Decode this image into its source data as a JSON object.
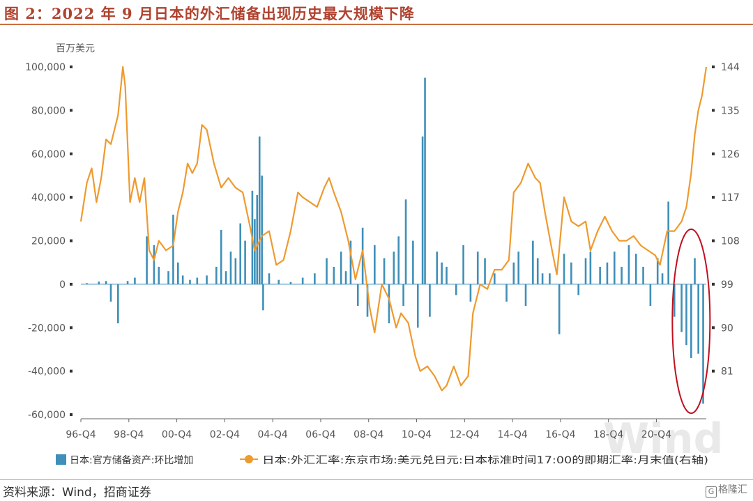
{
  "figure": {
    "title": "图 2：2022 年 9 月日本的外汇储备出现历史最大规模下降",
    "source": "资料来源：Wind，招商证券",
    "logo_text": "格隆汇",
    "watermark": "Wind"
  },
  "colors": {
    "title": "#b0422e",
    "bar": "#3f8fb8",
    "line": "#ef9a2e",
    "circle": "#c0101e",
    "axis": "#666666"
  },
  "chart_data": {
    "type": "bar+line",
    "unit_left": "百万美元",
    "left_axis": {
      "min": -60000,
      "max": 100000,
      "ticks": [
        100000,
        80000,
        60000,
        40000,
        20000,
        0,
        -20000,
        -40000,
        -60000
      ],
      "labels": [
        "100,000",
        "80,000",
        "60,000",
        "40,000",
        "20,000",
        "0",
        "-20,000",
        "-40,000",
        "-60,000"
      ]
    },
    "right_axis": {
      "min": 72,
      "max": 144,
      "ticks": [
        144,
        135,
        126,
        117,
        108,
        99,
        90,
        81
      ],
      "labels": [
        "144",
        "135",
        "126",
        "117",
        "108",
        "99",
        "90",
        "81"
      ]
    },
    "x_ticks": [
      "96-Q4",
      "98-Q4",
      "00-Q4",
      "02-Q4",
      "04-Q4",
      "06-Q4",
      "08-Q4",
      "10-Q4",
      "12-Q4",
      "14-Q4",
      "16-Q4",
      "18-Q4",
      "20-Q4"
    ],
    "x_range": [
      1996.75,
      2022.83
    ],
    "series": [
      {
        "name": "日本:官方储备资产:环比增加",
        "kind": "bar",
        "points": [
          [
            1997.0,
            500
          ],
          [
            1997.5,
            1200
          ],
          [
            1997.8,
            1500
          ],
          [
            1998.0,
            -8000
          ],
          [
            1998.3,
            -18000
          ],
          [
            1998.7,
            1500
          ],
          [
            1999.0,
            3000
          ],
          [
            1999.5,
            22000
          ],
          [
            1999.8,
            18000
          ],
          [
            2000.0,
            8000
          ],
          [
            2000.4,
            6000
          ],
          [
            2000.6,
            32000
          ],
          [
            2000.8,
            10000
          ],
          [
            2001.0,
            4000
          ],
          [
            2001.3,
            2000
          ],
          [
            2001.6,
            3000
          ],
          [
            2002.0,
            4000
          ],
          [
            2002.4,
            8000
          ],
          [
            2002.6,
            25000
          ],
          [
            2002.8,
            6000
          ],
          [
            2003.0,
            15000
          ],
          [
            2003.2,
            12000
          ],
          [
            2003.4,
            28000
          ],
          [
            2003.6,
            20000
          ],
          [
            2003.9,
            43000
          ],
          [
            2004.0,
            30000
          ],
          [
            2004.1,
            41000
          ],
          [
            2004.2,
            68000
          ],
          [
            2004.3,
            50000
          ],
          [
            2004.35,
            -12000
          ],
          [
            2004.6,
            5000
          ],
          [
            2005.0,
            2000
          ],
          [
            2005.5,
            1000
          ],
          [
            2006.0,
            3000
          ],
          [
            2006.5,
            5000
          ],
          [
            2007.0,
            12000
          ],
          [
            2007.3,
            8000
          ],
          [
            2007.6,
            15000
          ],
          [
            2007.8,
            6000
          ],
          [
            2008.0,
            20000
          ],
          [
            2008.3,
            -10000
          ],
          [
            2008.5,
            26000
          ],
          [
            2008.7,
            -15000
          ],
          [
            2009.0,
            18000
          ],
          [
            2009.4,
            12000
          ],
          [
            2009.6,
            -18000
          ],
          [
            2009.8,
            15000
          ],
          [
            2010.0,
            22000
          ],
          [
            2010.2,
            -10000
          ],
          [
            2010.3,
            39000
          ],
          [
            2010.6,
            20000
          ],
          [
            2010.8,
            -20000
          ],
          [
            2011.0,
            68000
          ],
          [
            2011.1,
            95000
          ],
          [
            2011.3,
            -15000
          ],
          [
            2011.6,
            15000
          ],
          [
            2011.8,
            10000
          ],
          [
            2012.0,
            8000
          ],
          [
            2012.4,
            -5000
          ],
          [
            2012.7,
            18000
          ],
          [
            2013.0,
            -8000
          ],
          [
            2013.3,
            15000
          ],
          [
            2013.6,
            12000
          ],
          [
            2014.0,
            5000
          ],
          [
            2014.5,
            -8000
          ],
          [
            2014.8,
            10000
          ],
          [
            2015.0,
            15000
          ],
          [
            2015.3,
            -10000
          ],
          [
            2015.6,
            20000
          ],
          [
            2015.8,
            12000
          ],
          [
            2016.0,
            5000
          ],
          [
            2016.3,
            5000
          ],
          [
            2016.7,
            -23000
          ],
          [
            2016.9,
            14000
          ],
          [
            2017.2,
            10000
          ],
          [
            2017.5,
            -5000
          ],
          [
            2017.8,
            12000
          ],
          [
            2018.0,
            15000
          ],
          [
            2018.4,
            8000
          ],
          [
            2018.7,
            10000
          ],
          [
            2019.0,
            15000
          ],
          [
            2019.3,
            8000
          ],
          [
            2019.6,
            18000
          ],
          [
            2019.9,
            14000
          ],
          [
            2020.2,
            8000
          ],
          [
            2020.5,
            -10000
          ],
          [
            2020.8,
            12000
          ],
          [
            2021.0,
            5000
          ],
          [
            2021.25,
            38000
          ],
          [
            2021.5,
            -15000
          ],
          [
            2021.8,
            -22000
          ],
          [
            2022.0,
            -28000
          ],
          [
            2022.2,
            -34000
          ],
          [
            2022.35,
            12000
          ],
          [
            2022.5,
            -32000
          ],
          [
            2022.7,
            -55000
          ]
        ]
      },
      {
        "name": "日本:外汇汇率:东京市场:美元兑日元:日本标准时间17:00的即期汇率:月末值(右轴)",
        "kind": "line",
        "points": [
          [
            1996.75,
            112
          ],
          [
            1997.0,
            120
          ],
          [
            1997.2,
            123
          ],
          [
            1997.4,
            116
          ],
          [
            1997.6,
            121
          ],
          [
            1997.8,
            129
          ],
          [
            1998.0,
            128
          ],
          [
            1998.2,
            132
          ],
          [
            1998.3,
            134
          ],
          [
            1998.5,
            144
          ],
          [
            1998.6,
            140
          ],
          [
            1998.8,
            116
          ],
          [
            1999.0,
            121
          ],
          [
            1999.2,
            116
          ],
          [
            1999.4,
            121
          ],
          [
            1999.6,
            106
          ],
          [
            1999.8,
            104
          ],
          [
            2000.0,
            108
          ],
          [
            2000.3,
            106
          ],
          [
            2000.6,
            107
          ],
          [
            2000.8,
            114
          ],
          [
            2001.0,
            118
          ],
          [
            2001.2,
            124
          ],
          [
            2001.4,
            122
          ],
          [
            2001.6,
            124
          ],
          [
            2001.8,
            132
          ],
          [
            2002.0,
            131
          ],
          [
            2002.3,
            124
          ],
          [
            2002.6,
            119
          ],
          [
            2002.9,
            121
          ],
          [
            2003.2,
            119
          ],
          [
            2003.5,
            118
          ],
          [
            2003.8,
            111
          ],
          [
            2004.0,
            106
          ],
          [
            2004.3,
            109
          ],
          [
            2004.6,
            110
          ],
          [
            2004.9,
            103
          ],
          [
            2005.2,
            104
          ],
          [
            2005.5,
            110
          ],
          [
            2005.8,
            118
          ],
          [
            2006.0,
            117
          ],
          [
            2006.3,
            116
          ],
          [
            2006.6,
            115
          ],
          [
            2006.9,
            119
          ],
          [
            2007.1,
            121
          ],
          [
            2007.3,
            118
          ],
          [
            2007.6,
            114
          ],
          [
            2007.9,
            108
          ],
          [
            2008.2,
            100
          ],
          [
            2008.5,
            106
          ],
          [
            2008.8,
            94
          ],
          [
            2009.0,
            89
          ],
          [
            2009.3,
            99
          ],
          [
            2009.6,
            96
          ],
          [
            2009.9,
            90
          ],
          [
            2010.1,
            93
          ],
          [
            2010.4,
            91
          ],
          [
            2010.7,
            84
          ],
          [
            2010.9,
            81
          ],
          [
            2011.2,
            82
          ],
          [
            2011.5,
            80
          ],
          [
            2011.8,
            77
          ],
          [
            2012.0,
            78
          ],
          [
            2012.3,
            82
          ],
          [
            2012.6,
            78
          ],
          [
            2012.9,
            80
          ],
          [
            2013.1,
            93
          ],
          [
            2013.4,
            99
          ],
          [
            2013.7,
            98
          ],
          [
            2014.0,
            102
          ],
          [
            2014.3,
            102
          ],
          [
            2014.6,
            104
          ],
          [
            2014.8,
            118
          ],
          [
            2015.1,
            120
          ],
          [
            2015.4,
            124
          ],
          [
            2015.7,
            121
          ],
          [
            2015.9,
            120
          ],
          [
            2016.1,
            114
          ],
          [
            2016.4,
            106
          ],
          [
            2016.6,
            101
          ],
          [
            2016.9,
            117
          ],
          [
            2017.2,
            112
          ],
          [
            2017.5,
            111
          ],
          [
            2017.8,
            112
          ],
          [
            2018.0,
            106
          ],
          [
            2018.3,
            110
          ],
          [
            2018.6,
            113
          ],
          [
            2018.9,
            110
          ],
          [
            2019.2,
            108
          ],
          [
            2019.5,
            108
          ],
          [
            2019.8,
            109
          ],
          [
            2020.1,
            107
          ],
          [
            2020.4,
            106
          ],
          [
            2020.7,
            105
          ],
          [
            2020.9,
            103
          ],
          [
            2021.2,
            110
          ],
          [
            2021.5,
            110
          ],
          [
            2021.8,
            112
          ],
          [
            2022.0,
            115
          ],
          [
            2022.2,
            122
          ],
          [
            2022.35,
            130
          ],
          [
            2022.5,
            135
          ],
          [
            2022.65,
            138
          ],
          [
            2022.83,
            144
          ]
        ]
      }
    ],
    "annotation": "red ellipse around 2022 bars",
    "grid": false,
    "legend_position": "bottom"
  }
}
